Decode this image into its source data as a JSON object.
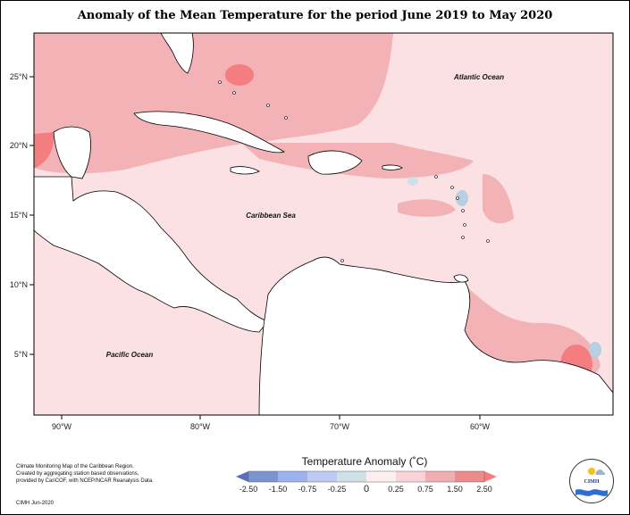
{
  "title": "Anomaly of the Mean Temperature for the period June 2019 to May 2020",
  "map": {
    "lat_ticks": [
      "25°N",
      "20°N",
      "15°N",
      "10°N",
      "5°N"
    ],
    "lon_ticks": [
      "90°W",
      "80°W",
      "70°W",
      "60°W"
    ],
    "ocean_labels": {
      "atlantic": "Atlantic Ocean",
      "caribbean": "Caribbean Sea",
      "pacific": "Pacific Ocean"
    },
    "colors": {
      "anom_0_025": "#fbe0e4",
      "anom_025_075": "#f3b3b6",
      "anom_075_150": "#ee9c9e",
      "anom_150_250": "#f47d80",
      "anom_neg": "#b7cfe0",
      "land": "#ffffff"
    }
  },
  "legend": {
    "title": "Temperature Anomaly (˚C)",
    "labels": [
      "-2.50",
      "-1.50",
      "-0.75",
      "-0.25",
      "0",
      "0.25",
      "0.75",
      "1.50",
      "2.50"
    ],
    "colors": [
      "#7b93d1",
      "#9db2ee",
      "#bfcaf2",
      "#cfe0e6",
      "#fdeff0",
      "#f8d4d8",
      "#f0aeb2",
      "#ec8a8e",
      "#f47d80"
    ]
  },
  "credit": {
    "line1": "Climate Monitoring Map of the Caribbean Region.",
    "line2": "Created by aggregating station based observations,",
    "line3": "provided by CariCOF, with NCEP/NCAR Reanalysis Data.",
    "date": "CIMH Jun-2020"
  },
  "logo": {
    "text": "CIMH"
  }
}
